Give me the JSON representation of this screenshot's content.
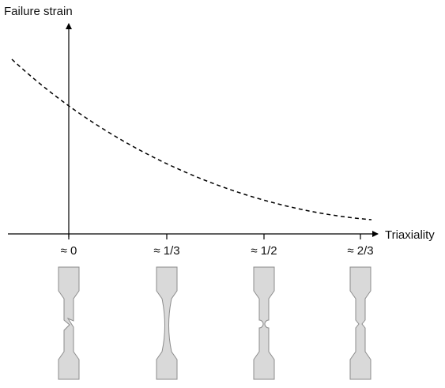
{
  "axes": {
    "y_label": "Failure strain",
    "x_label": "Triaxiality"
  },
  "ticks": [
    "≈ 0",
    "≈ 1/3",
    "≈ 1/2",
    "≈ 2/3"
  ]
}
